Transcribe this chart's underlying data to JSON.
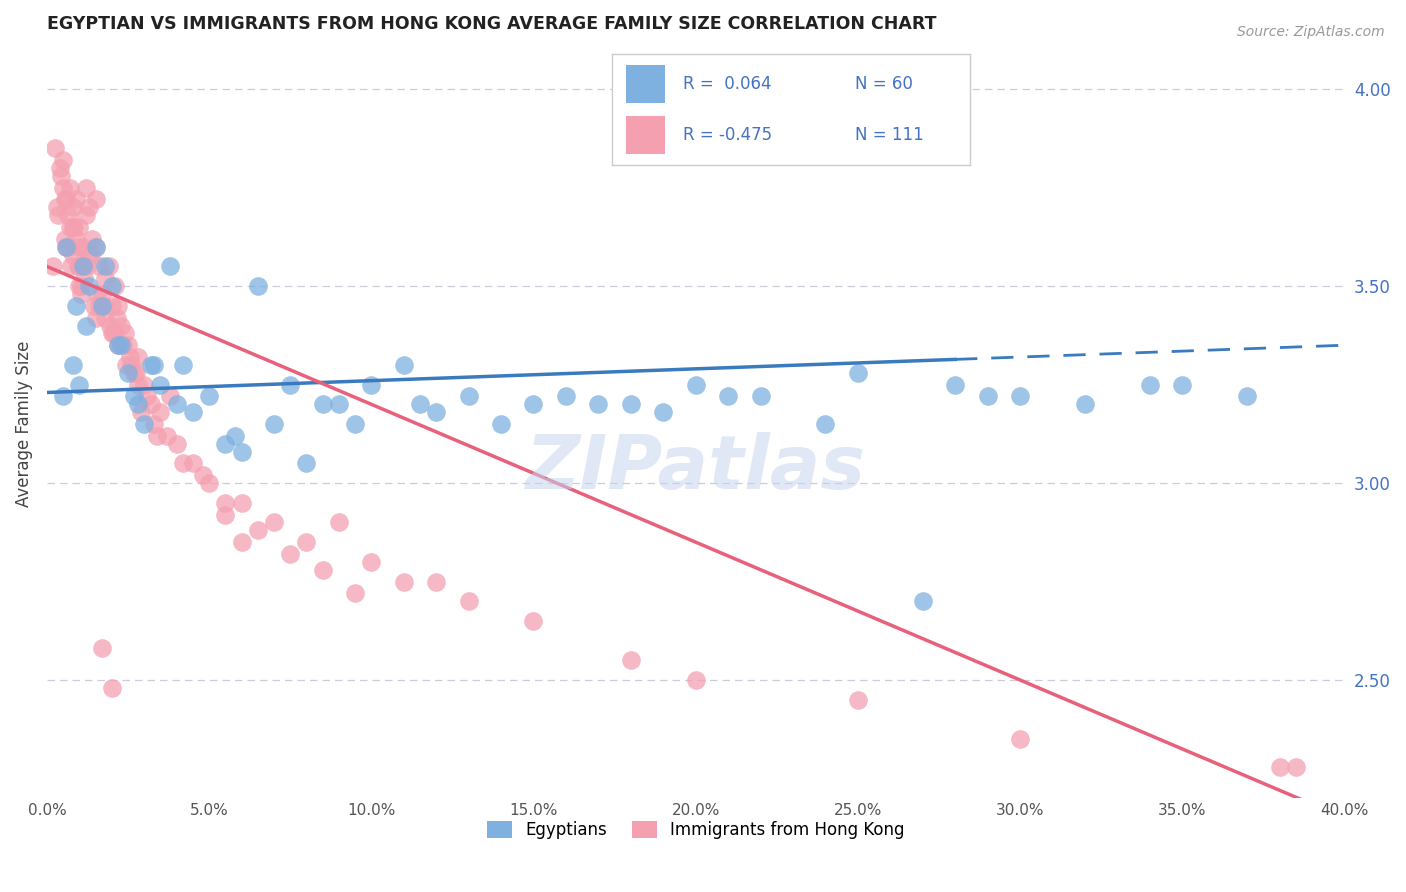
{
  "title": "EGYPTIAN VS IMMIGRANTS FROM HONG KONG AVERAGE FAMILY SIZE CORRELATION CHART",
  "source": "Source: ZipAtlas.com",
  "ylabel": "Average Family Size",
  "right_yticks": [
    2.5,
    3.0,
    3.5,
    4.0
  ],
  "xlim": [
    0.0,
    40.0
  ],
  "ylim": [
    2.2,
    4.1
  ],
  "legend_r_blue": "0.064",
  "legend_n_blue": "60",
  "legend_r_pink": "-0.475",
  "legend_n_pink": "111",
  "blue_color": "#7EB0E0",
  "pink_color": "#F4A0B0",
  "blue_line_color": "#3A7ABF",
  "pink_line_color": "#E8607A",
  "grid_color": "#CCCCDD",
  "blue_intercept": 3.23,
  "blue_slope": 0.003,
  "pink_intercept": 3.55,
  "pink_slope": -0.035,
  "blue_scatter_x": [
    0.5,
    0.8,
    1.0,
    1.2,
    1.5,
    1.8,
    2.0,
    2.2,
    2.5,
    2.8,
    3.0,
    3.2,
    3.5,
    4.0,
    4.5,
    5.0,
    5.5,
    6.0,
    7.0,
    8.0,
    9.0,
    10.0,
    11.0,
    12.0,
    13.0,
    14.0,
    15.0,
    16.0,
    18.0,
    20.0,
    22.0,
    25.0,
    28.0,
    30.0,
    32.0,
    35.0,
    37.0,
    2.3,
    1.7,
    3.8,
    6.5,
    8.5,
    9.5,
    11.5,
    4.2,
    5.8,
    7.5,
    3.3,
    2.7,
    1.3,
    0.9,
    17.0,
    19.0,
    21.0,
    24.0,
    27.0,
    29.0,
    34.0,
    1.1,
    0.6
  ],
  "blue_scatter_y": [
    3.22,
    3.3,
    3.25,
    3.4,
    3.6,
    3.55,
    3.5,
    3.35,
    3.28,
    3.2,
    3.15,
    3.3,
    3.25,
    3.2,
    3.18,
    3.22,
    3.1,
    3.08,
    3.15,
    3.05,
    3.2,
    3.25,
    3.3,
    3.18,
    3.22,
    3.15,
    3.2,
    3.22,
    3.2,
    3.25,
    3.22,
    3.28,
    3.25,
    3.22,
    3.2,
    3.25,
    3.22,
    3.35,
    3.45,
    3.55,
    3.5,
    3.2,
    3.15,
    3.2,
    3.3,
    3.12,
    3.25,
    3.3,
    3.22,
    3.5,
    3.45,
    3.2,
    3.18,
    3.22,
    3.15,
    2.7,
    3.22,
    3.25,
    3.55,
    3.6
  ],
  "pink_scatter_x": [
    0.2,
    0.3,
    0.4,
    0.5,
    0.5,
    0.6,
    0.7,
    0.8,
    0.8,
    0.9,
    1.0,
    1.0,
    1.1,
    1.2,
    1.2,
    1.3,
    1.4,
    1.5,
    1.5,
    1.6,
    1.7,
    1.8,
    1.9,
    2.0,
    2.1,
    2.2,
    2.3,
    2.4,
    2.5,
    2.6,
    2.7,
    2.8,
    3.0,
    3.2,
    3.5,
    3.8,
    4.0,
    4.5,
    5.0,
    5.5,
    6.0,
    7.0,
    8.0,
    9.0,
    10.0,
    11.0,
    12.0,
    13.0,
    15.0,
    18.0,
    20.0,
    25.0,
    30.0,
    38.0,
    0.35,
    0.55,
    0.75,
    0.95,
    1.15,
    1.35,
    1.55,
    1.75,
    1.95,
    2.15,
    2.35,
    2.55,
    2.75,
    0.6,
    0.85,
    1.05,
    1.25,
    1.45,
    2.05,
    2.25,
    2.45,
    3.3,
    3.7,
    4.2,
    0.45,
    0.65,
    0.9,
    1.1,
    1.3,
    4.8,
    5.5,
    6.5,
    7.5,
    8.5,
    9.5,
    0.25,
    0.7,
    1.0,
    1.8,
    2.0,
    2.8,
    3.1,
    0.55,
    1.6,
    2.2,
    3.4,
    1.7,
    2.0,
    0.8,
    6.0,
    0.65,
    0.95,
    1.05,
    1.5,
    2.1,
    2.9,
    38.5
  ],
  "pink_scatter_y": [
    3.55,
    3.7,
    3.8,
    3.82,
    3.75,
    3.6,
    3.65,
    3.7,
    3.58,
    3.72,
    3.55,
    3.65,
    3.6,
    3.68,
    3.75,
    3.7,
    3.62,
    3.6,
    3.72,
    3.55,
    3.48,
    3.52,
    3.55,
    3.45,
    3.5,
    3.45,
    3.4,
    3.38,
    3.35,
    3.3,
    3.28,
    3.32,
    3.25,
    3.2,
    3.18,
    3.22,
    3.1,
    3.05,
    3.0,
    2.95,
    2.95,
    2.9,
    2.85,
    2.9,
    2.8,
    2.75,
    2.75,
    2.7,
    2.65,
    2.55,
    2.5,
    2.45,
    2.35,
    2.28,
    3.68,
    3.62,
    3.55,
    3.6,
    3.52,
    3.58,
    3.48,
    3.45,
    3.4,
    3.42,
    3.35,
    3.32,
    3.28,
    3.72,
    3.65,
    3.5,
    3.55,
    3.45,
    3.38,
    3.35,
    3.3,
    3.15,
    3.12,
    3.05,
    3.78,
    3.68,
    3.62,
    3.55,
    3.58,
    3.02,
    2.92,
    2.88,
    2.82,
    2.78,
    2.72,
    3.85,
    3.75,
    3.5,
    3.42,
    3.38,
    3.25,
    3.22,
    3.72,
    3.45,
    3.35,
    3.12,
    2.58,
    2.48,
    3.65,
    2.85,
    3.6,
    3.55,
    3.48,
    3.42,
    3.38,
    3.18,
    2.28
  ]
}
